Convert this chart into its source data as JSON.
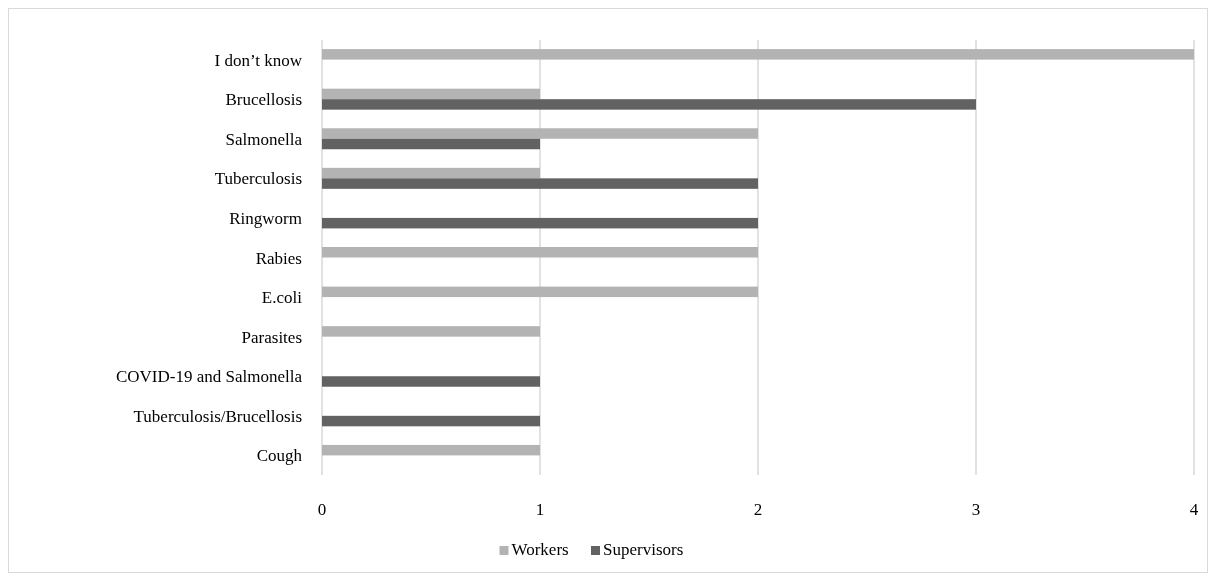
{
  "chart_data": {
    "type": "bar",
    "orientation": "horizontal",
    "categories": [
      "I don’t know",
      "Brucellosis",
      "Salmonella",
      "Tuberculosis",
      "Ringworm",
      "Rabies",
      "E.coli",
      "Parasites",
      "COVID-19 and Salmonella",
      "Tuberculosis/Brucellosis",
      "Cough"
    ],
    "series": [
      {
        "name": "Workers",
        "color": "#b3b3b3",
        "values": [
          4,
          1,
          2,
          1,
          null,
          2,
          2,
          1,
          null,
          null,
          1
        ]
      },
      {
        "name": "Supervisors",
        "color": "#626262",
        "values": [
          null,
          3,
          1,
          2,
          2,
          null,
          null,
          null,
          1,
          1,
          null
        ]
      }
    ],
    "xlim": [
      0,
      4
    ],
    "xticks": [
      0,
      1,
      2,
      3,
      4
    ],
    "grid": "x",
    "legend": "bottom"
  }
}
